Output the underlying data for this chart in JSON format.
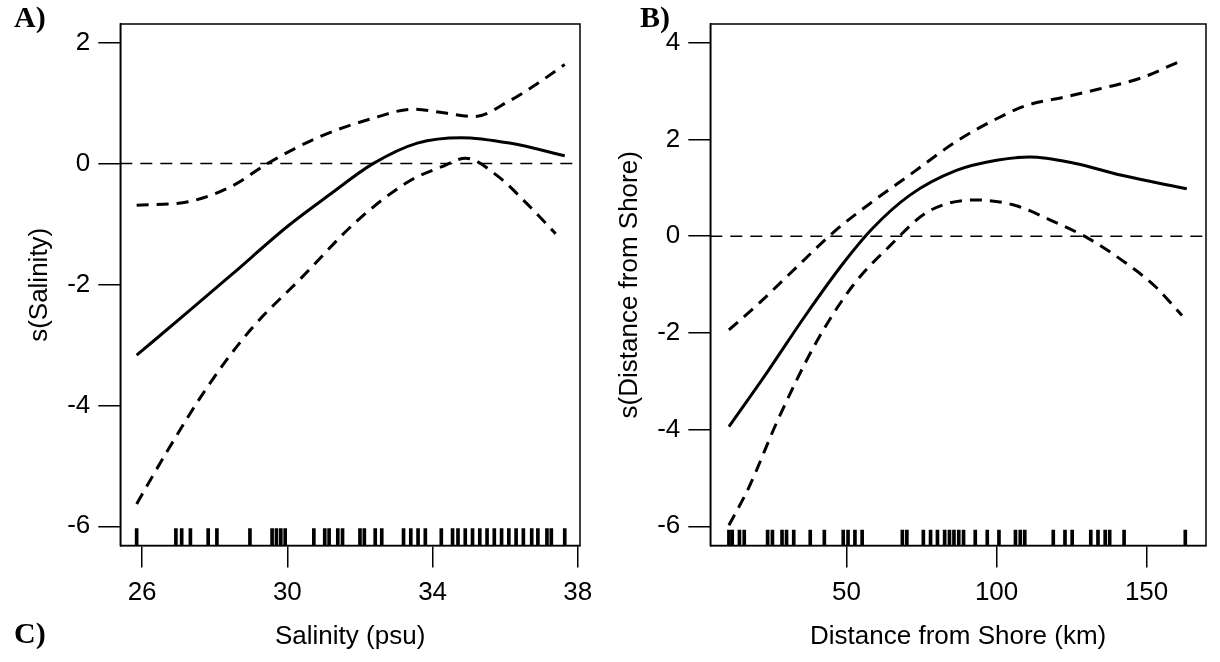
{
  "chart_data": [
    {
      "type": "line",
      "xlabel": "Salinity (psu)",
      "ylabel": "s(Salinity)",
      "annotations": [
        "A)",
        "C)"
      ],
      "xlim": [
        25.4,
        38.06
      ],
      "ylim": [
        -6.32,
        2.31
      ],
      "xticks": [
        26,
        30,
        34,
        38
      ],
      "yticks": [
        -6,
        -4,
        -2,
        0,
        2
      ],
      "grid": false,
      "legend": false,
      "marker": "none",
      "ref_lines": [
        {
          "axis": "y",
          "value": 0,
          "color": "#000000",
          "line_style": "dashed"
        }
      ],
      "series": [
        {
          "color": "#000000",
          "line_style": "solid",
          "x": [
            25.85,
            27.27,
            28.48,
            30,
            31.15,
            32.36,
            33.58,
            34.79,
            36.12,
            37.64
          ],
          "values": [
            -3.17,
            -2.45,
            -1.83,
            -1.04,
            -0.52,
            0,
            0.34,
            0.43,
            0.34,
            0.13
          ]
        },
        {
          "color": "#000000",
          "line_style": "dashed",
          "x": [
            25.85,
            27.27,
            28.48,
            29.45,
            30.91,
            32.36,
            33.45,
            34.3,
            35.15,
            36.12,
            36.85,
            37.64
          ],
          "values": [
            -0.69,
            -0.63,
            -0.37,
            0,
            0.45,
            0.75,
            0.9,
            0.84,
            0.78,
            1.04,
            1.31,
            1.64
          ]
        },
        {
          "color": "#000000",
          "line_style": "dashed",
          "x": [
            25.85,
            26.67,
            27.76,
            28.97,
            30.42,
            31.88,
            33.33,
            34.3,
            34.91,
            35.76,
            36.61,
            37.39
          ],
          "values": [
            -5.63,
            -4.78,
            -3.73,
            -2.76,
            -1.87,
            -0.97,
            -0.3,
            -0.04,
            0.09,
            -0.19,
            -0.67,
            -1.16
          ]
        },
        {
          "type": "bar",
          "color": "#000000",
          "base": [
            -6.32,
            -6.32,
            -6.32,
            -6.32,
            -6.32,
            -6.32,
            -6.32,
            -6.32,
            -6.32,
            -6.32,
            -6.32,
            -6.32,
            -6.32,
            -6.32,
            -6.32,
            -6.32,
            -6.32,
            -6.32,
            -6.32,
            -6.32,
            -6.32,
            -6.32,
            -6.32,
            -6.32,
            -6.32,
            -6.32,
            -6.32,
            -6.32,
            -6.32,
            -6.32,
            -6.32,
            -6.32,
            -6.32,
            -6.32,
            -6.32,
            -6.32,
            -6.32,
            -6.32,
            -6.32,
            -6.32,
            -6.32
          ],
          "x": [
            25.85,
            26.93,
            27.09,
            27.33,
            27.82,
            28.06,
            28.97,
            29.58,
            29.7,
            29.82,
            29.94,
            30.73,
            31.03,
            31.15,
            31.39,
            31.52,
            32,
            32.12,
            32.42,
            32.6,
            33.2,
            33.4,
            33.6,
            33.8,
            34.24,
            34.55,
            34.7,
            34.9,
            35.1,
            35.3,
            35.5,
            35.7,
            35.9,
            36.1,
            36.3,
            36.5,
            36.73,
            36.9,
            37.15,
            37.27,
            37.64
          ],
          "values": [
            0.28,
            0.28,
            0.28,
            0.28,
            0.28,
            0.28,
            0.28,
            0.28,
            0.28,
            0.28,
            0.28,
            0.28,
            0.28,
            0.28,
            0.28,
            0.28,
            0.28,
            0.28,
            0.28,
            0.28,
            0.28,
            0.28,
            0.28,
            0.28,
            0.28,
            0.28,
            0.28,
            0.28,
            0.28,
            0.28,
            0.28,
            0.28,
            0.28,
            0.28,
            0.28,
            0.28,
            0.28,
            0.28,
            0.28,
            0.28,
            0.28
          ]
        }
      ]
    },
    {
      "type": "line",
      "xlabel": "Distance from Shore (km)",
      "ylabel": "s(Distance from Shore)",
      "annotations": [
        "B)"
      ],
      "xlim": [
        4.6,
        169.8
      ],
      "ylim": [
        -6.4,
        4.39
      ],
      "xticks": [
        50,
        100,
        150
      ],
      "yticks": [
        -6,
        -4,
        -2,
        0,
        2,
        4
      ],
      "grid": false,
      "legend": false,
      "marker": "none",
      "ref_lines": [
        {
          "axis": "y",
          "value": 0,
          "color": "#000000",
          "line_style": "dashed"
        }
      ],
      "series": [
        {
          "color": "#000000",
          "line_style": "solid",
          "x": [
            10.8,
            23.7,
            36.3,
            48.9,
            58.3,
            70.9,
            86.6,
            100,
            111,
            125.9,
            141.7,
            163.4
          ],
          "values": [
            -3.94,
            -2.8,
            -1.64,
            -0.56,
            0.14,
            0.84,
            1.36,
            1.57,
            1.64,
            1.51,
            1.26,
            0.98
          ]
        },
        {
          "color": "#000000",
          "line_style": "dashed",
          "x": [
            10.8,
            20.6,
            33.2,
            45.8,
            58.3,
            70.9,
            86.6,
            100,
            110.2,
            122.8,
            133.8,
            148,
            160.5
          ],
          "values": [
            -1.94,
            -1.4,
            -0.65,
            0.09,
            0.7,
            1.26,
            1.96,
            2.43,
            2.71,
            2.88,
            3.04,
            3.27,
            3.6
          ]
        },
        {
          "color": "#000000",
          "line_style": "dashed",
          "x": [
            10.8,
            17.5,
            26.9,
            39.5,
            52,
            64.6,
            77.2,
            92.9,
            105.5,
            118.1,
            130.7,
            143.2,
            152.7,
            161.8
          ],
          "values": [
            -5.98,
            -5.19,
            -3.83,
            -2.24,
            -1.03,
            -0.19,
            0.51,
            0.75,
            0.65,
            0.33,
            -0.05,
            -0.56,
            -1.03,
            -1.64
          ]
        },
        {
          "type": "bar",
          "color": "#000000",
          "base": [
            -6.4,
            -6.4,
            -6.4,
            -6.4,
            -6.4,
            -6.4,
            -6.4,
            -6.4,
            -6.4,
            -6.4,
            -6.4,
            -6.4,
            -6.4,
            -6.4,
            -6.4,
            -6.4,
            -6.4,
            -6.4,
            -6.4,
            -6.4,
            -6.4,
            -6.4,
            -6.4,
            -6.4,
            -6.4,
            -6.4,
            -6.4,
            -6.4,
            -6.4,
            -6.4,
            -6.4,
            -6.4,
            -6.4,
            -6.4,
            -6.4,
            -6.4,
            -6.4,
            -6.4,
            -6.4,
            -6.4
          ],
          "x": [
            10.8,
            11.9,
            14.3,
            15.9,
            23.7,
            25.3,
            28.5,
            30,
            32.4,
            37.9,
            42.6,
            48.9,
            50.5,
            52.8,
            55.2,
            68.6,
            70.1,
            75.6,
            78,
            80.3,
            82.7,
            84.3,
            85.8,
            87.4,
            89,
            92.9,
            96.9,
            100.8,
            106.3,
            107.9,
            109.4,
            118.9,
            122.8,
            125.2,
            131.4,
            133.8,
            136.2,
            137.7,
            142.5,
            162.9
          ],
          "values": [
            0.32,
            0.32,
            0.32,
            0.32,
            0.32,
            0.32,
            0.32,
            0.32,
            0.32,
            0.32,
            0.32,
            0.32,
            0.32,
            0.32,
            0.32,
            0.32,
            0.32,
            0.32,
            0.32,
            0.32,
            0.32,
            0.32,
            0.32,
            0.32,
            0.32,
            0.32,
            0.32,
            0.32,
            0.32,
            0.32,
            0.32,
            0.32,
            0.32,
            0.32,
            0.32,
            0.32,
            0.32,
            0.32,
            0.32,
            0.32
          ]
        }
      ]
    }
  ]
}
